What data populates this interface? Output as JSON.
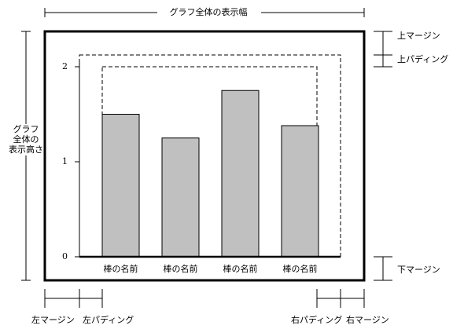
{
  "chart_data": {
    "type": "bar",
    "categories": [
      "棒の名前",
      "棒の名前",
      "棒の名前",
      "棒の名前"
    ],
    "values": [
      1.5,
      1.25,
      1.75,
      1.38
    ],
    "color": "#c0c0c0",
    "ylim": [
      0,
      2
    ],
    "yticks": [
      0,
      1,
      2
    ]
  },
  "dimensions": {
    "width": "グラフ全体の表示幅",
    "height": [
      "グラフ",
      "全体の",
      "表示高さ"
    ],
    "top_margin": "上マージン",
    "top_padding": "上パディング",
    "bottom_margin": "下マージン",
    "left_margin": "左マージン",
    "left_padding": "左パディング",
    "right_padding": "右パディング",
    "right_margin": "右マージン"
  }
}
